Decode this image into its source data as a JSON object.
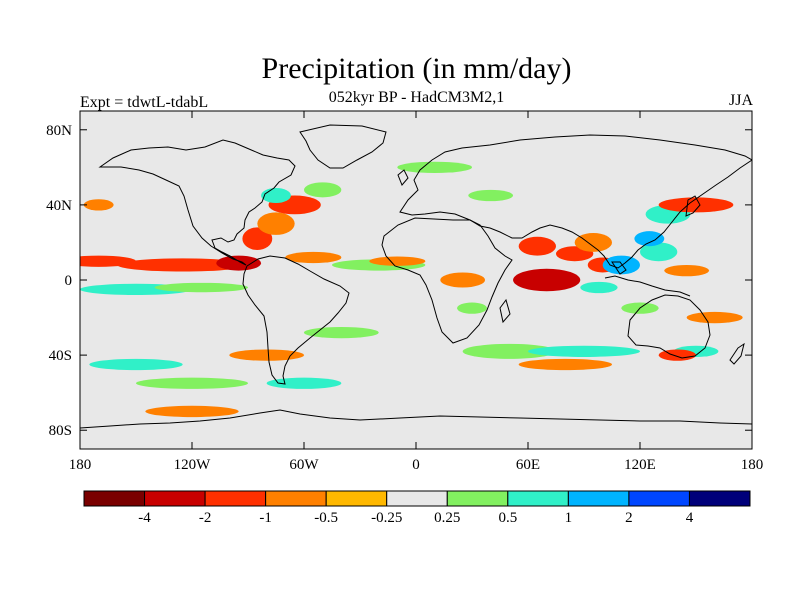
{
  "header": {
    "title": "Precipitation (in mm/day)",
    "subtitle": "052kyr BP - HadCM3M2,1",
    "experiment": "Expt = tdwtL-tdabL",
    "season": "JJA"
  },
  "axes": {
    "lat_labels": [
      "80N",
      "40N",
      "0",
      "40S",
      "80S"
    ],
    "lon_labels": [
      "180",
      "120W",
      "60W",
      "0",
      "60E",
      "120E",
      "180"
    ]
  },
  "colorbar": {
    "colors": [
      "#7a0000",
      "#c80000",
      "#ff3000",
      "#ff8000",
      "#ffb800",
      "#e8e8e8",
      "#82f060",
      "#30f0c8",
      "#00b4ff",
      "#0046ff",
      "#00007a"
    ],
    "labels": [
      "-4",
      "-2",
      "-1",
      "-0.5",
      "-0.25",
      "0.25",
      "0.5",
      "1",
      "2",
      "4"
    ]
  },
  "palette": {
    "background": "#e8e8e8",
    "coast": "#000000"
  },
  "map": {
    "projection": "cylindrical-equidistant",
    "lon_range": [
      -180,
      180
    ],
    "lat_range": [
      -90,
      90
    ],
    "anomaly_regions": [
      {
        "lon": -170,
        "lat": 10,
        "rx": 20,
        "ry": 3,
        "v": -1
      },
      {
        "lon": -125,
        "lat": 8,
        "rx": 35,
        "ry": 3.5,
        "v": -1
      },
      {
        "lon": -95,
        "lat": 9,
        "rx": 12,
        "ry": 4,
        "v": -2
      },
      {
        "lon": -150,
        "lat": -5,
        "rx": 30,
        "ry": 3,
        "v": 1
      },
      {
        "lon": -115,
        "lat": -4,
        "rx": 25,
        "ry": 2.5,
        "v": 0.5
      },
      {
        "lon": -85,
        "lat": 22,
        "rx": 8,
        "ry": 6,
        "v": -1
      },
      {
        "lon": -75,
        "lat": 30,
        "rx": 10,
        "ry": 6,
        "v": -0.5
      },
      {
        "lon": -65,
        "lat": 40,
        "rx": 14,
        "ry": 5,
        "v": -1
      },
      {
        "lon": -75,
        "lat": 45,
        "rx": 8,
        "ry": 4,
        "v": 1
      },
      {
        "lon": -50,
        "lat": 48,
        "rx": 10,
        "ry": 4,
        "v": 0.5
      },
      {
        "lon": -55,
        "lat": 12,
        "rx": 15,
        "ry": 3,
        "v": -0.5
      },
      {
        "lon": -20,
        "lat": 8,
        "rx": 25,
        "ry": 3,
        "v": 0.5
      },
      {
        "lon": -10,
        "lat": 10,
        "rx": 15,
        "ry": 2.5,
        "v": -0.5
      },
      {
        "lon": -40,
        "lat": -28,
        "rx": 20,
        "ry": 3,
        "v": 0.5
      },
      {
        "lon": -80,
        "lat": -40,
        "rx": 20,
        "ry": 3,
        "v": -0.5
      },
      {
        "lon": -60,
        "lat": -55,
        "rx": 20,
        "ry": 3,
        "v": 1
      },
      {
        "lon": -150,
        "lat": -45,
        "rx": 25,
        "ry": 3,
        "v": 1
      },
      {
        "lon": -120,
        "lat": -55,
        "rx": 30,
        "ry": 3,
        "v": 0.5
      },
      {
        "lon": -120,
        "lat": -70,
        "rx": 25,
        "ry": 3,
        "v": -0.5
      },
      {
        "lon": -170,
        "lat": 40,
        "rx": 8,
        "ry": 3,
        "v": -0.5
      },
      {
        "lon": 10,
        "lat": 60,
        "rx": 20,
        "ry": 3,
        "v": 0.5
      },
      {
        "lon": 40,
        "lat": 45,
        "rx": 12,
        "ry": 3,
        "v": 0.5
      },
      {
        "lon": 50,
        "lat": -38,
        "rx": 25,
        "ry": 4,
        "v": 0.5
      },
      {
        "lon": 90,
        "lat": -38,
        "rx": 30,
        "ry": 3,
        "v": 1
      },
      {
        "lon": 80,
        "lat": -45,
        "rx": 25,
        "ry": 3,
        "v": -0.5
      },
      {
        "lon": 70,
        "lat": 0,
        "rx": 18,
        "ry": 6,
        "v": -2
      },
      {
        "lon": 65,
        "lat": 18,
        "rx": 10,
        "ry": 5,
        "v": -1
      },
      {
        "lon": 85,
        "lat": 14,
        "rx": 10,
        "ry": 4,
        "v": -1
      },
      {
        "lon": 95,
        "lat": 20,
        "rx": 10,
        "ry": 5,
        "v": -0.5
      },
      {
        "lon": 100,
        "lat": 8,
        "rx": 8,
        "ry": 4,
        "v": -1
      },
      {
        "lon": 110,
        "lat": 8,
        "rx": 10,
        "ry": 5,
        "v": 2
      },
      {
        "lon": 98,
        "lat": -4,
        "rx": 10,
        "ry": 3,
        "v": 1
      },
      {
        "lon": 130,
        "lat": 15,
        "rx": 10,
        "ry": 5,
        "v": 1
      },
      {
        "lon": 125,
        "lat": 22,
        "rx": 8,
        "ry": 4,
        "v": 2
      },
      {
        "lon": 135,
        "lat": 35,
        "rx": 12,
        "ry": 5,
        "v": 1
      },
      {
        "lon": 150,
        "lat": 40,
        "rx": 20,
        "ry": 4,
        "v": -1
      },
      {
        "lon": 145,
        "lat": 5,
        "rx": 12,
        "ry": 3,
        "v": -0.5
      },
      {
        "lon": 160,
        "lat": -20,
        "rx": 15,
        "ry": 3,
        "v": -0.5
      },
      {
        "lon": 150,
        "lat": -38,
        "rx": 12,
        "ry": 3,
        "v": 1
      },
      {
        "lon": 140,
        "lat": -40,
        "rx": 10,
        "ry": 3,
        "v": -1
      },
      {
        "lon": 120,
        "lat": -15,
        "rx": 10,
        "ry": 3,
        "v": 0.5
      },
      {
        "lon": 25,
        "lat": 0,
        "rx": 12,
        "ry": 4,
        "v": -0.5
      },
      {
        "lon": 30,
        "lat": -15,
        "rx": 8,
        "ry": 3,
        "v": 0.5
      }
    ]
  }
}
